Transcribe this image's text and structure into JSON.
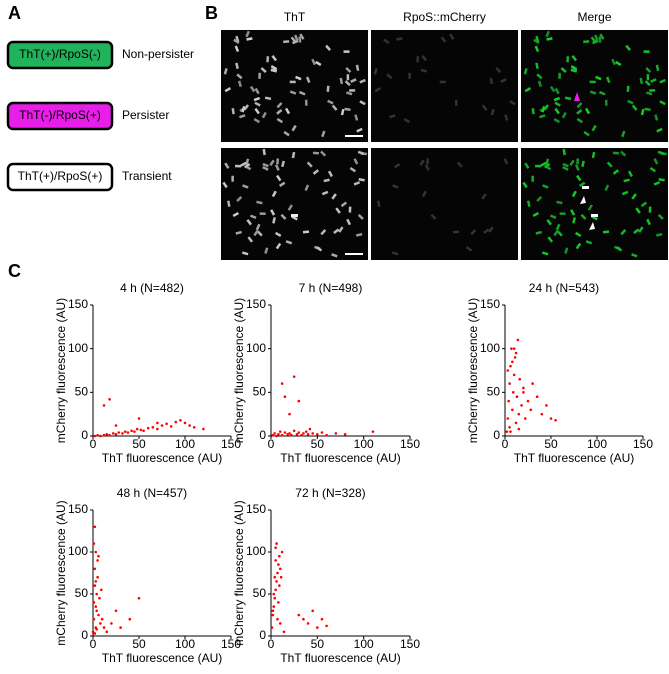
{
  "panels": {
    "a": "A",
    "b": "B",
    "c": "C"
  },
  "legend": [
    {
      "box": "ThT(+)/RpoS(-)",
      "label": "Non-persister",
      "color": "#21b35b"
    },
    {
      "box": "ThT(-)/RpoS(+)",
      "label": "Persister",
      "color": "#e81fe8"
    },
    {
      "box": "ThT(+)/RpoS(+)",
      "label": "Transient",
      "color": "#ffffff"
    }
  ],
  "images": {
    "headers": [
      "ThT",
      "RpoS::mCherry",
      "Merge"
    ]
  },
  "chart_data": [
    {
      "type": "scatter",
      "title": "4 h (N=482)",
      "x_label": "ThT fluorescence (AU)",
      "y_label": "mCherry fluorescence (AU)",
      "color": "#ff0000",
      "xlim": [
        0,
        150
      ],
      "ylim": [
        0,
        150
      ],
      "xticks": [
        0,
        50,
        100,
        150
      ],
      "yticks": [
        0,
        50,
        100,
        150
      ],
      "x": [
        2,
        5,
        8,
        12,
        15,
        18,
        22,
        25,
        28,
        32,
        35,
        38,
        42,
        45,
        48,
        52,
        55,
        60,
        65,
        70,
        75,
        80,
        85,
        90,
        95,
        100,
        105,
        110,
        120,
        18,
        12,
        25,
        50,
        70
      ],
      "values": [
        0,
        1,
        0,
        1,
        2,
        1,
        3,
        2,
        4,
        3,
        5,
        4,
        6,
        5,
        8,
        7,
        6,
        9,
        10,
        8,
        12,
        14,
        11,
        16,
        18,
        15,
        12,
        10,
        8,
        42,
        35,
        12,
        20,
        15
      ]
    },
    {
      "type": "scatter",
      "title": "7 h (N=498)",
      "x_label": "ThT fluorescence (AU)",
      "y_label": "mCherry fluorescence (AU)",
      "color": "#ff0000",
      "xlim": [
        0,
        150
      ],
      "ylim": [
        0,
        150
      ],
      "xticks": [
        0,
        50,
        100,
        150
      ],
      "yticks": [
        0,
        50,
        100,
        150
      ],
      "x": [
        2,
        4,
        6,
        8,
        10,
        12,
        15,
        18,
        20,
        22,
        25,
        28,
        30,
        33,
        35,
        38,
        40,
        42,
        45,
        50,
        55,
        60,
        70,
        80,
        110,
        20,
        15,
        25,
        30,
        12
      ],
      "values": [
        1,
        3,
        0,
        2,
        5,
        1,
        4,
        2,
        3,
        1,
        6,
        2,
        4,
        1,
        3,
        5,
        2,
        8,
        3,
        2,
        4,
        1,
        3,
        2,
        5,
        25,
        45,
        68,
        40,
        60
      ]
    },
    {
      "type": "scatter",
      "title": "24 h (N=543)",
      "x_label": "ThT fluorescence (AU)",
      "y_label": "mCherry fluorescence (AU)",
      "color": "#ff0000",
      "xlim": [
        0,
        150
      ],
      "ylim": [
        0,
        150
      ],
      "xticks": [
        0,
        50,
        100,
        150
      ],
      "yticks": [
        0,
        50,
        100,
        150
      ],
      "x": [
        2,
        3,
        4,
        5,
        6,
        7,
        8,
        9,
        10,
        11,
        12,
        13,
        14,
        15,
        16,
        18,
        20,
        22,
        25,
        28,
        30,
        35,
        40,
        45,
        50,
        55,
        5,
        8,
        12,
        3,
        6,
        10,
        15,
        20
      ],
      "values": [
        5,
        20,
        40,
        60,
        80,
        100,
        30,
        50,
        70,
        90,
        15,
        45,
        110,
        25,
        65,
        35,
        55,
        20,
        40,
        30,
        60,
        45,
        25,
        35,
        20,
        18,
        10,
        85,
        95,
        75,
        5,
        100,
        8,
        50
      ]
    },
    {
      "type": "scatter",
      "title": "48 h (N=457)",
      "x_label": "ThT fluorescence (AU)",
      "y_label": "mCherry fluorescence (AU)",
      "color": "#ff0000",
      "xlim": [
        0,
        150
      ],
      "ylim": [
        0,
        150
      ],
      "xticks": [
        0,
        50,
        100,
        150
      ],
      "yticks": [
        0,
        50,
        100,
        150
      ],
      "x": [
        0,
        1,
        1,
        2,
        2,
        3,
        3,
        4,
        4,
        5,
        5,
        6,
        7,
        8,
        1,
        2,
        3,
        9,
        10,
        12,
        15,
        20,
        25,
        30,
        40,
        50,
        2,
        4,
        6,
        3
      ],
      "values": [
        5,
        20,
        40,
        60,
        80,
        100,
        10,
        30,
        50,
        70,
        90,
        25,
        45,
        15,
        110,
        130,
        35,
        55,
        20,
        10,
        5,
        15,
        30,
        10,
        20,
        45,
        3,
        8,
        95,
        65
      ]
    },
    {
      "type": "scatter",
      "title": "72 h (N=328)",
      "x_label": "ThT fluorescence (AU)",
      "y_label": "mCherry fluorescence (AU)",
      "color": "#ff0000",
      "xlim": [
        0,
        150
      ],
      "ylim": [
        0,
        150
      ],
      "xticks": [
        0,
        50,
        100,
        150
      ],
      "yticks": [
        0,
        50,
        100,
        150
      ],
      "x": [
        1,
        2,
        3,
        4,
        5,
        6,
        7,
        8,
        9,
        10,
        12,
        14,
        2,
        4,
        6,
        8,
        10,
        3,
        5,
        7,
        30,
        35,
        40,
        45,
        50,
        55,
        60,
        5,
        9,
        11
      ],
      "values": [
        10,
        30,
        50,
        70,
        90,
        110,
        20,
        40,
        60,
        80,
        100,
        5,
        25,
        45,
        65,
        85,
        15,
        35,
        55,
        75,
        25,
        20,
        15,
        30,
        10,
        20,
        12,
        105,
        95,
        70
      ]
    }
  ]
}
